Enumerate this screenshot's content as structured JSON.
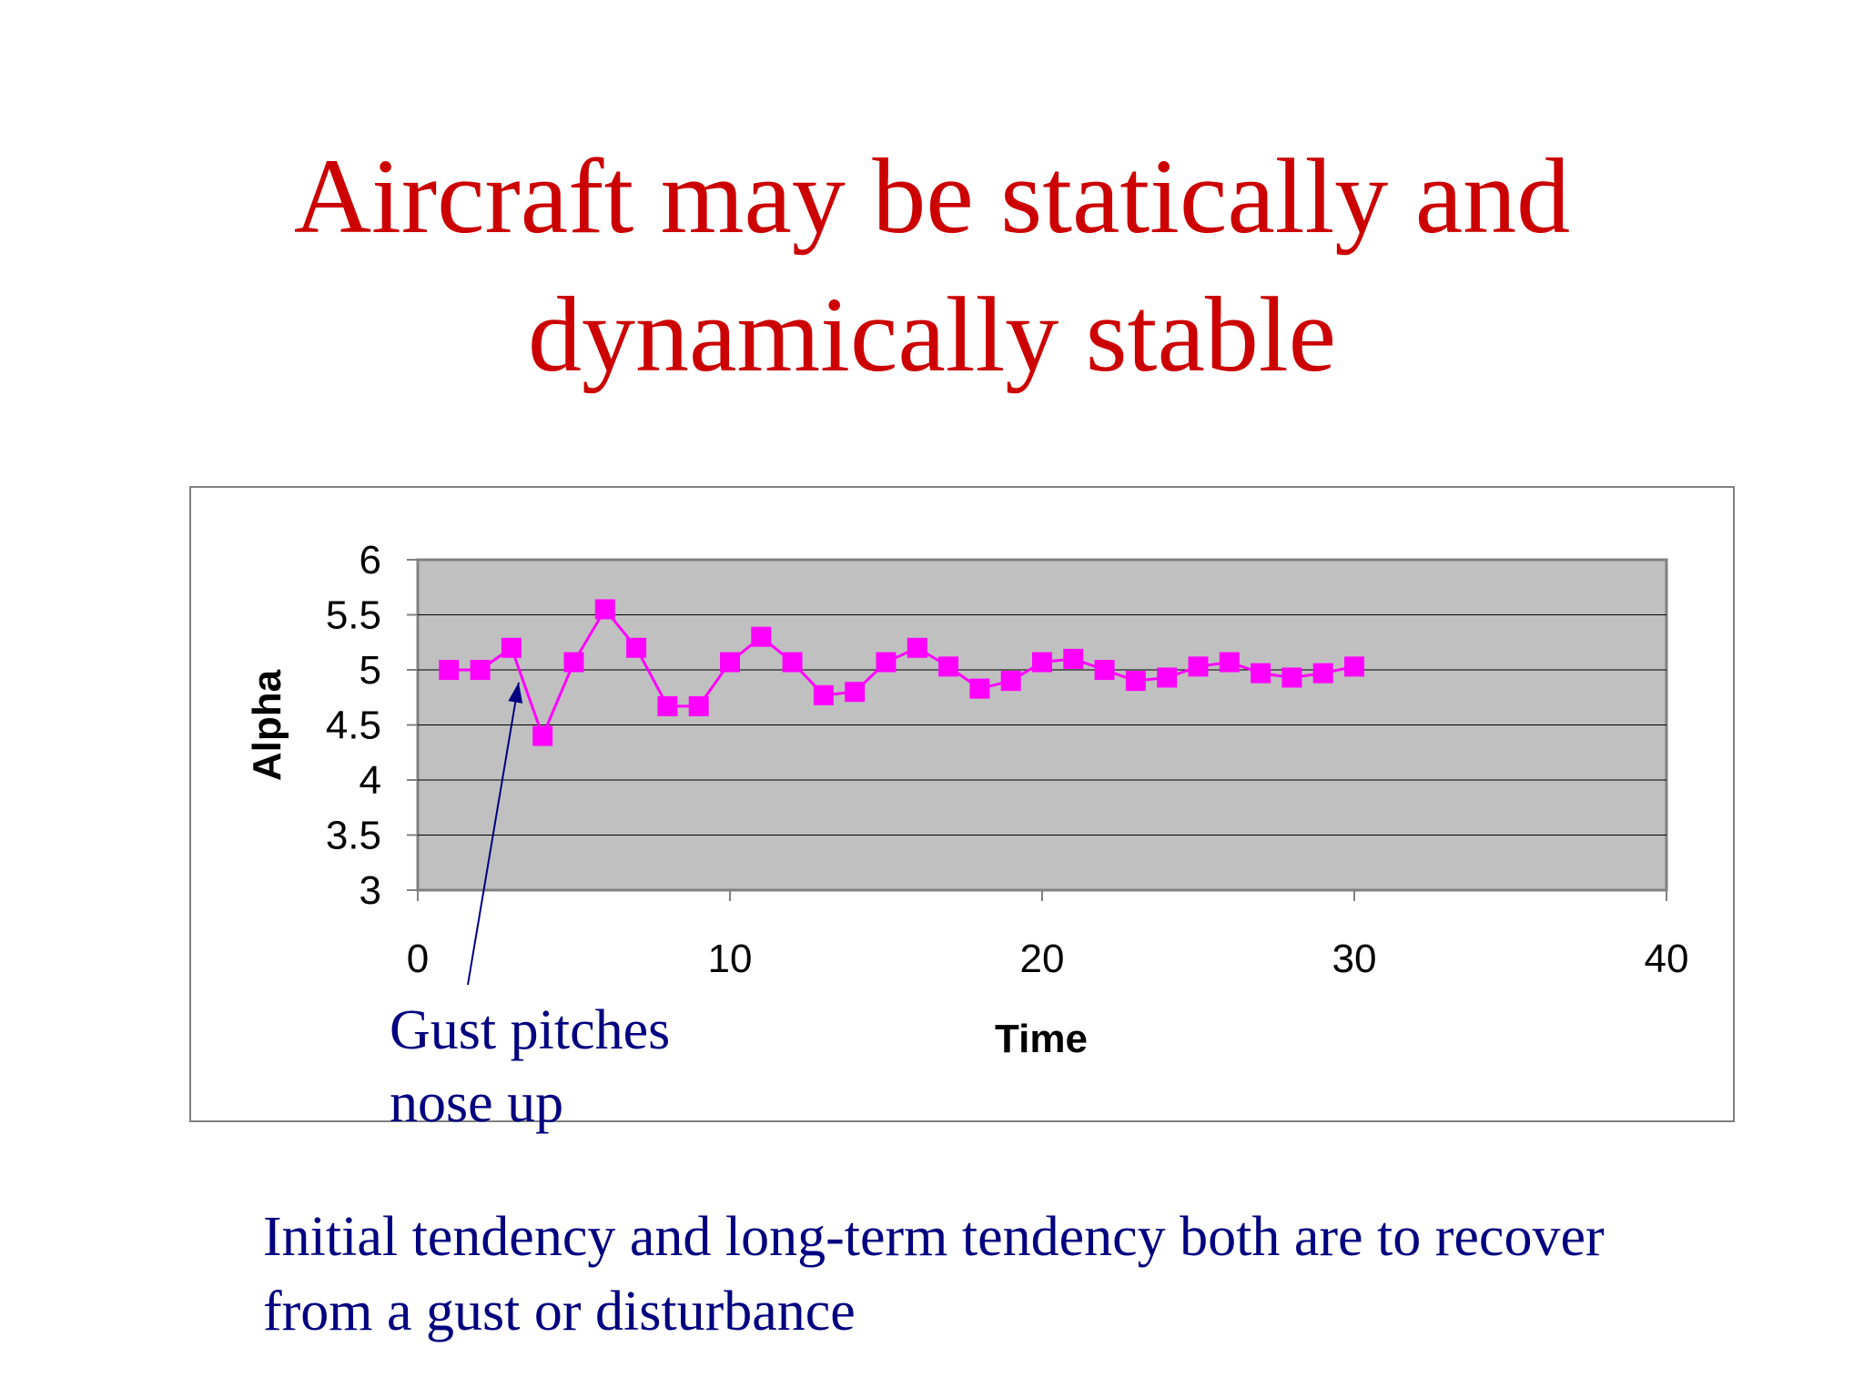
{
  "title": {
    "line1": "Aircraft may be statically and",
    "line2": "dynamically stable"
  },
  "chart_data": {
    "type": "line",
    "xlabel": "Time",
    "ylabel": "Alpha",
    "xlim": [
      0,
      40
    ],
    "ylim": [
      3,
      6
    ],
    "xticks": [
      "0",
      "10",
      "20",
      "30",
      "40"
    ],
    "yticks": [
      "3",
      "3.5",
      "4",
      "4.5",
      "5",
      "5.5",
      "6"
    ],
    "grid": true,
    "legend": "none",
    "plot_background": "#c0c0c0",
    "series_color": "#ff00ff",
    "marker": "square",
    "x": [
      1,
      2,
      3,
      4,
      5,
      6,
      7,
      8,
      9,
      10,
      11,
      12,
      13,
      14,
      15,
      16,
      17,
      18,
      19,
      20,
      21,
      22,
      23,
      24,
      25,
      26,
      27,
      28,
      29,
      30
    ],
    "y": [
      5.0,
      5.0,
      5.2,
      4.4,
      5.07,
      5.55,
      5.2,
      4.67,
      4.67,
      5.07,
      5.3,
      5.07,
      4.77,
      4.8,
      5.07,
      5.2,
      5.03,
      4.83,
      4.9,
      5.07,
      5.1,
      5.0,
      4.9,
      4.93,
      5.03,
      5.07,
      4.97,
      4.93,
      4.97,
      5.03
    ]
  },
  "annotation": {
    "line1": "Gust pitches",
    "line2": "nose up",
    "color": "#000080",
    "points_to_x": 3
  },
  "caption": {
    "line1": "Initial tendency and long-term tendency both are to recover",
    "line2": "from a gust or disturbance"
  }
}
